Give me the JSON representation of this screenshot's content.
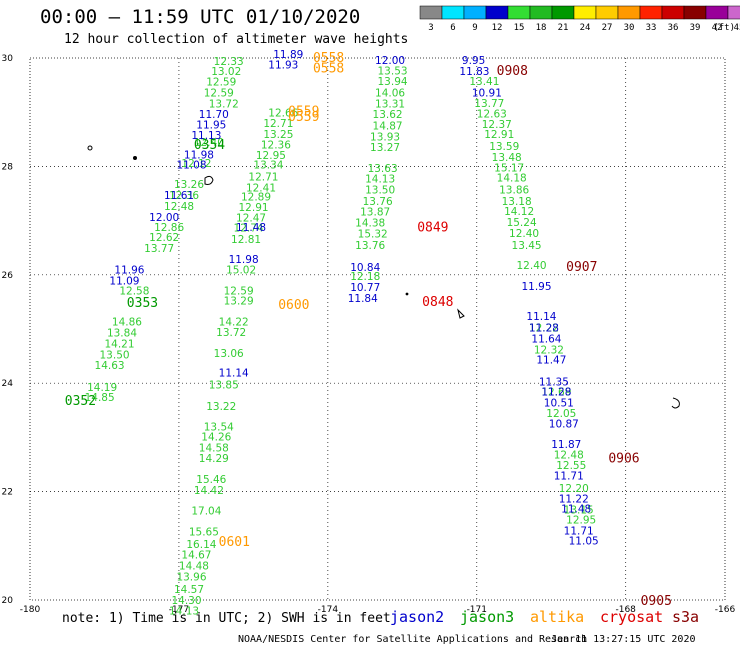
{
  "header": {
    "title": "00:00 – 11:59 UTC 01/10/2020",
    "subtitle": "12 hour collection of altimeter wave heights"
  },
  "footer": {
    "note": "note: 1) Time is in UTC; 2) SWH is in feet",
    "credit": "NOAA/NESDIS Center for Satellite Applications and Research",
    "stamp": "Jan 11 13:27:15 UTC 2020"
  },
  "satellites": [
    {
      "name": "jason2",
      "color": "#0000cc"
    },
    {
      "name": "jason3",
      "color": "#009900"
    },
    {
      "name": "altika",
      "color": "#ff9900"
    },
    {
      "name": "cryosat",
      "color": "#dd0000"
    },
    {
      "name": "s3a",
      "color": "#880000"
    }
  ],
  "colorbar": {
    "ticks": [
      "3",
      "6",
      "9",
      "12",
      "15",
      "18",
      "21",
      "24",
      "27",
      "30",
      "33",
      "36",
      "39",
      "42",
      "45",
      "70"
    ],
    "unit": "(ft)",
    "colors": [
      "#888888",
      "#00e5ff",
      "#00b0ff",
      "#0000cc",
      "#33dd33",
      "#22bb22",
      "#009900",
      "#ffee00",
      "#ffcc00",
      "#ff9900",
      "#ff2200",
      "#cc0000",
      "#880000",
      "#990099",
      "#cc66cc",
      "#000000"
    ]
  },
  "chart_data": {
    "type": "scatter",
    "title": "00:00 – 11:59 UTC 01/10/2020",
    "subtitle": "12 hour collection of altimeter wave heights",
    "xlim": [
      -180,
      -166
    ],
    "ylim": [
      20,
      30
    ],
    "xticks": [
      "-180",
      "-177",
      "-174",
      "-171",
      "-168",
      "-166"
    ],
    "yticks": [
      "20",
      "22",
      "24",
      "26",
      "28",
      "30"
    ],
    "grid": true,
    "legend_position": "bottom",
    "series": [
      {
        "name": "jason3",
        "color": "#33cc33",
        "points": [
          [
            -176.3,
            29.87,
            12.33
          ],
          [
            -176.35,
            29.69,
            13.02
          ],
          [
            -176.45,
            29.49,
            12.59
          ],
          [
            -176.5,
            29.29,
            12.59
          ],
          [
            -176.7,
            28.38,
            12.4
          ],
          [
            -176.95,
            27.99,
            12.12
          ],
          [
            -177.1,
            27.6,
            13.26
          ],
          [
            -177.2,
            27.4,
            12.36
          ],
          [
            -177.3,
            27.2,
            12.48
          ],
          [
            -177.5,
            26.81,
            12.86
          ],
          [
            -177.6,
            26.62,
            12.62
          ],
          [
            -177.7,
            26.42,
            13.77
          ],
          [
            -178.2,
            25.64,
            12.58
          ],
          [
            -178.35,
            25.06,
            14.86
          ],
          [
            -178.45,
            24.86,
            13.84
          ],
          [
            -178.5,
            24.66,
            14.21
          ],
          [
            -178.6,
            24.46,
            13.5
          ],
          [
            -178.7,
            24.26,
            14.63
          ],
          [
            -178.85,
            23.86,
            14.19
          ],
          [
            -178.9,
            23.67,
            14.85
          ],
          [
            -176.4,
            29.09,
            13.72
          ],
          [
            -175.2,
            28.92,
            12.66
          ],
          [
            -175.3,
            28.73,
            12.71
          ],
          [
            -175.3,
            28.52,
            13.25
          ],
          [
            -175.35,
            28.33,
            12.36
          ],
          [
            -175.45,
            28.14,
            12.95
          ],
          [
            -175.5,
            27.96,
            13.34
          ],
          [
            -175.6,
            27.74,
            12.71
          ],
          [
            -175.65,
            27.54,
            12.41
          ],
          [
            -175.75,
            27.37,
            12.89
          ],
          [
            -175.8,
            27.18,
            12.91
          ],
          [
            -175.85,
            26.98,
            12.47
          ],
          [
            -175.9,
            26.8,
            12.74
          ],
          [
            -175.95,
            26.59,
            12.81
          ],
          [
            -176.05,
            26.02,
            15.02
          ],
          [
            -176.1,
            25.64,
            12.59
          ],
          [
            -176.1,
            25.45,
            13.29
          ],
          [
            -176.2,
            25.06,
            14.22
          ],
          [
            -176.25,
            24.87,
            13.72
          ],
          [
            -176.3,
            24.48,
            13.06
          ],
          [
            -176.4,
            23.9,
            13.85
          ],
          [
            -176.45,
            23.51,
            13.22
          ],
          [
            -176.5,
            23.13,
            13.54
          ],
          [
            -176.55,
            22.94,
            14.26
          ],
          [
            -176.6,
            22.74,
            14.58
          ],
          [
            -176.6,
            22.55,
            14.29
          ],
          [
            -176.65,
            22.16,
            15.46
          ],
          [
            -176.7,
            21.96,
            14.42
          ],
          [
            -176.75,
            21.58,
            17.04
          ],
          [
            -176.8,
            21.19,
            15.65
          ],
          [
            -176.85,
            20.96,
            16.14
          ],
          [
            -176.95,
            20.77,
            14.67
          ],
          [
            -177.0,
            20.56,
            14.48
          ],
          [
            -177.05,
            20.36,
            13.96
          ],
          [
            -177.1,
            20.13,
            14.57
          ],
          [
            -177.15,
            19.93,
            14.3
          ],
          [
            -177.2,
            19.73,
            14.13
          ],
          [
            -173.0,
            29.7,
            13.53
          ],
          [
            -173.0,
            29.5,
            13.94
          ],
          [
            -173.05,
            29.29,
            14.06
          ],
          [
            -173.05,
            29.09,
            13.31
          ],
          [
            -173.1,
            28.89,
            13.62
          ],
          [
            -173.1,
            28.68,
            14.87
          ],
          [
            -173.15,
            28.48,
            13.93
          ],
          [
            -173.15,
            28.28,
            13.27
          ],
          [
            -173.2,
            27.9,
            13.63
          ],
          [
            -173.25,
            27.7,
            14.13
          ],
          [
            -173.25,
            27.5,
            13.5
          ],
          [
            -173.3,
            27.29,
            13.76
          ],
          [
            -173.35,
            27.09,
            13.87
          ],
          [
            -173.45,
            26.89,
            14.38
          ],
          [
            -173.4,
            26.69,
            15.32
          ],
          [
            -173.45,
            26.48,
            13.76
          ],
          [
            -173.55,
            25.9,
            12.18
          ],
          [
            -171.15,
            29.5,
            13.41
          ],
          [
            -171.05,
            29.1,
            13.77
          ],
          [
            -171.0,
            28.9,
            12.63
          ],
          [
            -170.9,
            28.71,
            12.37
          ],
          [
            -170.85,
            28.52,
            12.91
          ],
          [
            -170.75,
            28.3,
            13.59
          ],
          [
            -170.7,
            28.1,
            13.48
          ],
          [
            -170.65,
            27.91,
            15.17
          ],
          [
            -170.6,
            27.72,
            14.18
          ],
          [
            -170.55,
            27.5,
            13.86
          ],
          [
            -170.5,
            27.29,
            13.18
          ],
          [
            -170.45,
            27.1,
            14.12
          ],
          [
            -170.4,
            26.9,
            15.24
          ],
          [
            -170.35,
            26.7,
            12.4
          ],
          [
            -170.3,
            26.48,
            13.45
          ],
          [
            -170.2,
            26.11,
            12.4
          ],
          [
            -169.95,
            24.95,
            12.22
          ],
          [
            -169.85,
            24.55,
            12.32
          ],
          [
            -169.7,
            23.77,
            12.69
          ],
          [
            -169.6,
            23.38,
            12.05
          ],
          [
            -169.45,
            22.61,
            12.48
          ],
          [
            -169.4,
            22.42,
            12.55
          ],
          [
            -169.35,
            21.99,
            12.2
          ],
          [
            -169.25,
            21.6,
            13.15
          ],
          [
            -169.2,
            21.41,
            12.95
          ]
        ]
      },
      {
        "name": "jason2",
        "color": "#0000cc",
        "points": [
          [
            -175.1,
            30.0,
            11.89
          ],
          [
            -175.2,
            29.81,
            11.93
          ],
          [
            -176.6,
            28.89,
            11.7
          ],
          [
            -176.65,
            28.7,
            11.95
          ],
          [
            -176.75,
            28.51,
            11.13
          ],
          [
            -176.9,
            28.15,
            11.98
          ],
          [
            -177.05,
            27.96,
            11.08
          ],
          [
            -177.3,
            27.4,
            11.61
          ],
          [
            -177.6,
            26.99,
            12.0
          ],
          [
            -178.3,
            26.02,
            11.96
          ],
          [
            -178.4,
            25.82,
            11.09
          ],
          [
            -175.85,
            26.81,
            11.48
          ],
          [
            -176.0,
            26.22,
            11.98
          ],
          [
            -176.2,
            24.12,
            11.14
          ],
          [
            -173.05,
            29.89,
            12.0
          ],
          [
            -173.55,
            26.07,
            10.84
          ],
          [
            -173.55,
            25.7,
            10.77
          ],
          [
            -173.6,
            25.5,
            11.84
          ],
          [
            -171.3,
            29.89,
            9.95
          ],
          [
            -171.35,
            29.69,
            11.83
          ],
          [
            -171.1,
            29.29,
            10.91
          ],
          [
            -170.1,
            25.72,
            11.95
          ],
          [
            -170.0,
            25.17,
            11.14
          ],
          [
            -169.95,
            24.95,
            11.28
          ],
          [
            -169.9,
            24.75,
            11.64
          ],
          [
            -169.8,
            24.36,
            11.47
          ],
          [
            -169.75,
            23.96,
            11.35
          ],
          [
            -169.7,
            23.77,
            11.28
          ],
          [
            -169.65,
            23.57,
            10.51
          ],
          [
            -169.55,
            23.18,
            10.87
          ],
          [
            -169.5,
            22.8,
            11.87
          ],
          [
            -169.45,
            22.22,
            11.71
          ],
          [
            -169.35,
            21.8,
            11.22
          ],
          [
            -169.3,
            21.61,
            11.48
          ],
          [
            -169.25,
            21.21,
            11.71
          ],
          [
            -169.15,
            21.02,
            11.05
          ]
        ]
      }
    ],
    "time_labels": [
      {
        "text": "0558",
        "lon": -174.3,
        "lat": 29.93,
        "color": "#ff9900"
      },
      {
        "text": "0558",
        "lon": -174.3,
        "lat": 29.73,
        "color": "#ff9900"
      },
      {
        "text": "0559",
        "lon": -174.8,
        "lat": 28.94,
        "color": "#ff9900"
      },
      {
        "text": "0559",
        "lon": -174.8,
        "lat": 28.84,
        "color": "#ff9900"
      },
      {
        "text": "0600",
        "lon": -175.0,
        "lat": 25.37,
        "color": "#ff9900"
      },
      {
        "text": "0601",
        "lon": -176.2,
        "lat": 21.0,
        "color": "#ff9900"
      },
      {
        "text": "0354",
        "lon": -176.7,
        "lat": 28.32,
        "color": "#009900"
      },
      {
        "text": "0353",
        "lon": -178.05,
        "lat": 25.41,
        "color": "#009900"
      },
      {
        "text": "0352",
        "lon": -179.3,
        "lat": 23.6,
        "color": "#009900"
      },
      {
        "text": "0908",
        "lon": -170.6,
        "lat": 29.69,
        "color": "#880000"
      },
      {
        "text": "0907",
        "lon": -169.2,
        "lat": 26.07,
        "color": "#880000"
      },
      {
        "text": "0906",
        "lon": -168.35,
        "lat": 22.54,
        "color": "#880000"
      },
      {
        "text": "0905",
        "lon": -167.7,
        "lat": 19.91,
        "color": "#880000"
      },
      {
        "text": "0849",
        "lon": -172.2,
        "lat": 26.8,
        "color": "#dd0000"
      },
      {
        "text": "0848",
        "lon": -172.1,
        "lat": 25.42,
        "color": "#dd0000"
      }
    ]
  }
}
